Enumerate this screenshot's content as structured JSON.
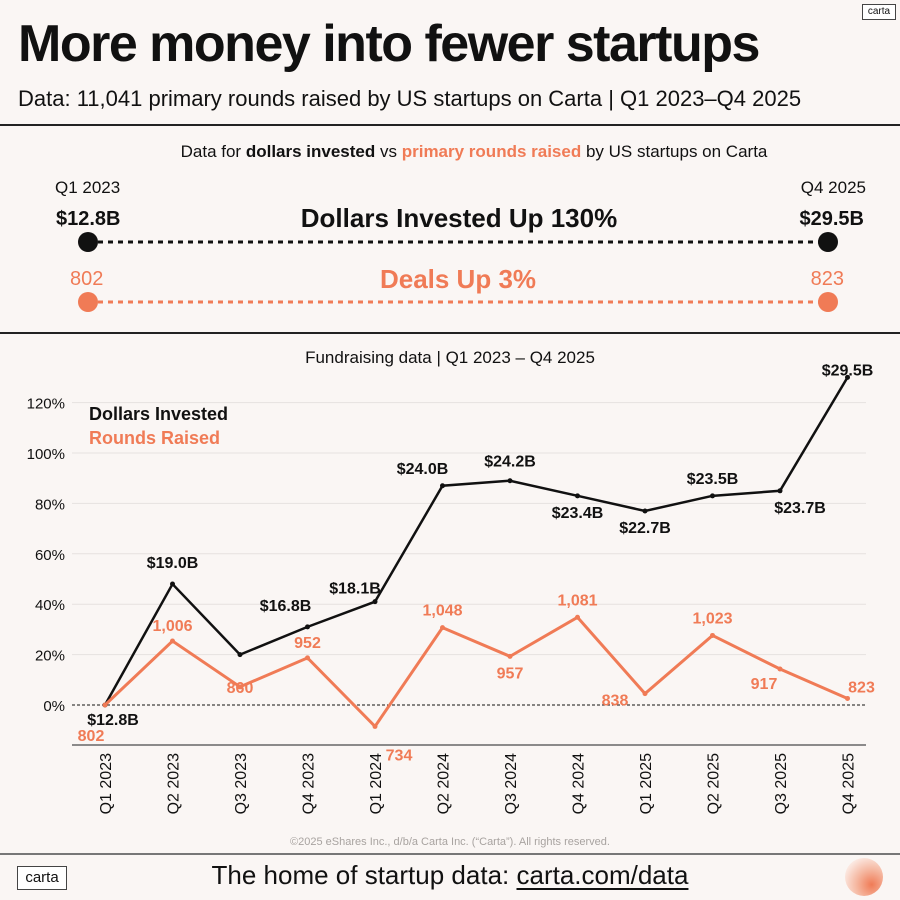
{
  "header": {
    "title": "More money into fewer startups",
    "subtitle": "Data: 11,041 primary rounds raised by US startups on Carta | Q1 2023–Q4 2025",
    "brand_badge": "carta"
  },
  "summary": {
    "caption_pre": "Data for ",
    "caption_bold": "dollars invested",
    "caption_mid": " vs ",
    "caption_orange": "primary rounds raised",
    "caption_post": " by US startups on Carta",
    "start_period": "Q1 2023",
    "end_period": "Q4 2025",
    "dollars_start": "$12.8B",
    "dollars_end": "$29.5B",
    "dollars_headline": "Dollars Invested Up 130%",
    "deals_start": "802",
    "deals_end": "823",
    "deals_headline": "Deals Up 3%"
  },
  "colors": {
    "dollars": "#111111",
    "rounds": "#f07b56",
    "grid": "#e6e1df"
  },
  "chart_data": {
    "type": "line",
    "title": "Fundraising data | Q1 2023 – Q4 2025",
    "xlabel": "",
    "ylabel": "",
    "ylim": [
      -15,
      130
    ],
    "yticks": [
      0,
      20,
      40,
      60,
      80,
      100,
      120
    ],
    "ytick_labels": [
      "0%",
      "20%",
      "40%",
      "60%",
      "80%",
      "100%",
      "120%"
    ],
    "grid": true,
    "zero_line": "dashed",
    "legend_position": "top-left",
    "categories": [
      "Q1 2023",
      "Q2 2023",
      "Q3 2023",
      "Q4 2023",
      "Q1 2024",
      "Q2 2024",
      "Q3 2024",
      "Q4 2024",
      "Q1 2025",
      "Q2 2025",
      "Q3 2025",
      "Q4 2025"
    ],
    "series": [
      {
        "name": "Dollars Invested",
        "unit": "% change vs Q1 2023",
        "values": [
          0,
          48,
          20,
          31,
          41,
          87,
          89,
          83,
          77,
          83,
          85,
          130
        ],
        "labels": [
          "$12.8B",
          "$19.0B",
          "",
          "$16.8B",
          "$18.1B",
          "$24.0B",
          "$24.2B",
          "$23.4B",
          "$22.7B",
          "$23.5B",
          "$23.7B",
          "$29.5B"
        ],
        "label_pos": [
          "below",
          "above",
          "none",
          "above",
          "above",
          "above",
          "above",
          "below",
          "below",
          "above",
          "below",
          "above"
        ]
      },
      {
        "name": "Rounds Raised",
        "unit": "% change vs Q1 2023",
        "values": [
          0,
          25.4,
          7.2,
          18.7,
          -8.5,
          30.7,
          19.3,
          34.8,
          4.5,
          27.6,
          14.3,
          2.6
        ],
        "labels": [
          "802",
          "1,006",
          "860",
          "952",
          "734",
          "1,048",
          "957",
          "1,081",
          "838",
          "1,023",
          "917",
          "823"
        ],
        "label_pos": [
          "below2",
          "above",
          "below",
          "above",
          "below-right",
          "above",
          "below",
          "above",
          "below-left",
          "above",
          "below-left",
          "above-right"
        ]
      }
    ]
  },
  "footer": {
    "copyright": "©2025 eShares Inc., d/b/a Carta Inc. (“Carta”). All rights reserved.",
    "tagline": "The home of startup data: ",
    "link": "carta.com/data",
    "brand_badge": "carta"
  }
}
